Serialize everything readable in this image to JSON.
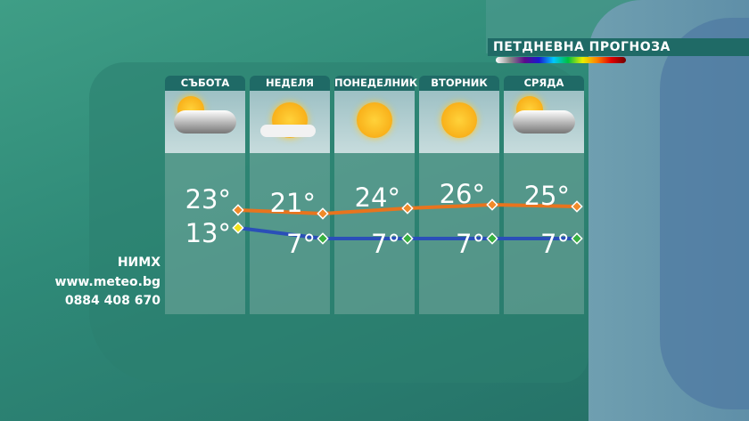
{
  "title": "ПЕТДНЕВНА ПРОГНОЗА",
  "source": {
    "name": "НИМХ",
    "site": "www.meteo.bg",
    "phone": "0884 408 670"
  },
  "days": [
    {
      "name": "СЪБОТА",
      "icon": "partly-cloudy-rain-icon"
    },
    {
      "name": "НЕДЕЛЯ",
      "icon": "sun-with-clouds-icon"
    },
    {
      "name": "ПОНЕДЕЛНИК",
      "icon": "sun-icon"
    },
    {
      "name": "ВТОРНИК",
      "icon": "sun-icon"
    },
    {
      "name": "СРЯДА",
      "icon": "partly-cloudy-rain-icon"
    }
  ],
  "chart_data": {
    "type": "line",
    "categories": [
      "СЪБОТА",
      "НЕДЕЛЯ",
      "ПОНЕДЕЛНИК",
      "ВТОРНИК",
      "СРЯДА"
    ],
    "series": [
      {
        "values": [
          23,
          21,
          24,
          26,
          25
        ],
        "color": "#e8741e",
        "labels": [
          "23°",
          "21°",
          "24°",
          "26°",
          "25°"
        ]
      },
      {
        "values": [
          13,
          7,
          7,
          7,
          7
        ],
        "color": "#2a4fb8",
        "labels": [
          "13°",
          "7°",
          "7°",
          "7°",
          "7°"
        ]
      }
    ]
  }
}
